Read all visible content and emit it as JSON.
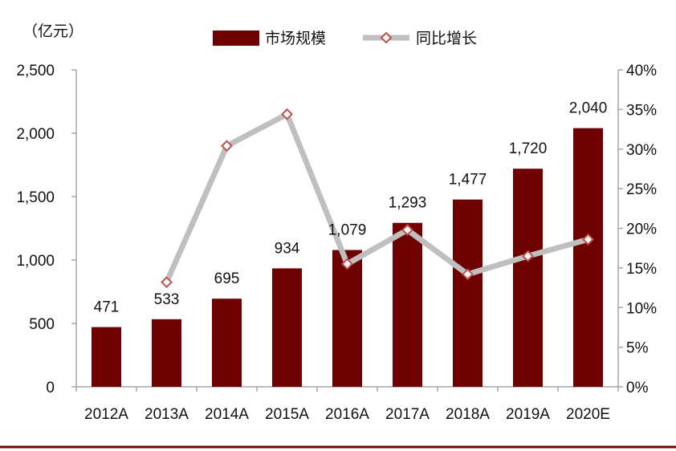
{
  "chart_data": {
    "type": "bar",
    "unit_label": "（亿元）",
    "categories": [
      "2012A",
      "2013A",
      "2014A",
      "2015A",
      "2016A",
      "2017A",
      "2018A",
      "2019A",
      "2020E"
    ],
    "series": [
      {
        "name": "市场规模",
        "type": "bar",
        "axis": "left",
        "color": "#6e0000",
        "values": [
          471,
          533,
          695,
          934,
          1079,
          1293,
          1477,
          1720,
          2040
        ],
        "labels": [
          "471",
          "533",
          "695",
          "934",
          "1,079",
          "1,293",
          "1,477",
          "1,720",
          "2,040"
        ]
      },
      {
        "name": "同比增长",
        "type": "line",
        "axis": "right",
        "color": "#bfbfbf",
        "marker_color": "#c0504d",
        "values": [
          null,
          13.2,
          30.4,
          34.4,
          15.5,
          19.8,
          14.2,
          16.5,
          18.6
        ]
      }
    ],
    "y_left": {
      "lim": [
        0,
        2500
      ],
      "ticks": [
        "0",
        "500",
        "1,000",
        "1,500",
        "2,000",
        "2,500"
      ]
    },
    "y_right": {
      "lim": [
        0,
        40
      ],
      "ticks": [
        "0%",
        "5%",
        "10%",
        "15%",
        "20%",
        "25%",
        "30%",
        "35%",
        "40%"
      ]
    },
    "legend_position": "top-center",
    "grid": false,
    "footer_rule_color": "#6e0000"
  }
}
